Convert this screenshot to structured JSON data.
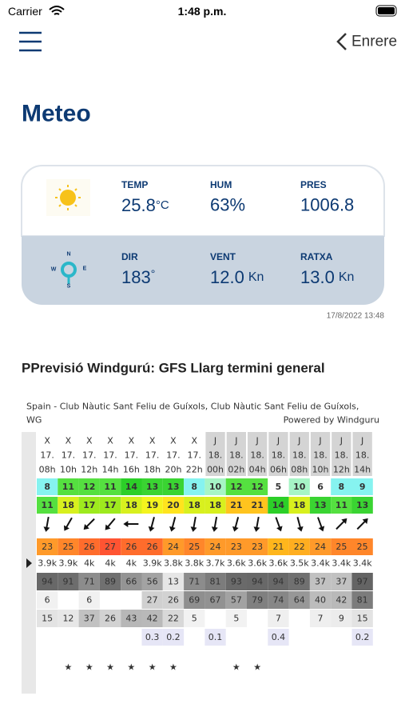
{
  "status_bar": {
    "carrier": "Carrier",
    "time": "1:48 p.m."
  },
  "nav": {
    "back": "Enrere"
  },
  "title": "Meteo",
  "current": {
    "temp": {
      "label": "TEMP",
      "value": "25.8",
      "unit": "°C"
    },
    "hum": {
      "label": "HUM",
      "value": "63%"
    },
    "pres": {
      "label": "PRES",
      "value": "1006.8"
    },
    "dir": {
      "label": "DIR",
      "value": "183",
      "unit": "°"
    },
    "vent": {
      "label": "VENT",
      "value": "12.0",
      "unit": "Kn"
    },
    "ratxa": {
      "label": "RATXA",
      "value": "13.0",
      "unit": "Kn"
    },
    "compass": {
      "n": "N",
      "w": "W",
      "e": "E",
      "s": "S"
    },
    "timestamp": "17/8/2022 13:48"
  },
  "forecast": {
    "heading": "PPrevisió Windgurú: GFS Llarg termini general",
    "location_line1": "Spain - Club Nàutic Sant Feliu de Guíxols, Club Nàutic Sant Feliu de Guíxols,",
    "location_line2": "WG",
    "powered": "Powered by Windguru",
    "days": [
      "X",
      "X",
      "X",
      "X",
      "X",
      "X",
      "X",
      "X",
      "J",
      "J",
      "J",
      "J",
      "J",
      "J",
      "J",
      "J"
    ],
    "dates": [
      "17.",
      "17.",
      "17.",
      "17.",
      "17.",
      "17.",
      "17.",
      "17.",
      "18.",
      "18.",
      "18.",
      "18.",
      "18.",
      "18.",
      "18.",
      "18."
    ],
    "hours": [
      "08h",
      "10h",
      "12h",
      "14h",
      "16h",
      "18h",
      "20h",
      "22h",
      "00h",
      "02h",
      "04h",
      "06h",
      "08h",
      "10h",
      "12h",
      "14h"
    ],
    "wind_speed": [
      8,
      11,
      12,
      11,
      14,
      13,
      13,
      8,
      10,
      12,
      12,
      5,
      10,
      6,
      8,
      9
    ],
    "wind_gust": [
      11,
      18,
      17,
      17,
      18,
      19,
      20,
      18,
      18,
      21,
      21,
      14,
      18,
      13,
      11,
      13
    ],
    "wind_direction": [
      10,
      30,
      45,
      40,
      90,
      15,
      15,
      10,
      10,
      15,
      10,
      340,
      345,
      340,
      225,
      225
    ],
    "temperature": [
      23,
      25,
      26,
      27,
      26,
      26,
      24,
      25,
      24,
      23,
      23,
      21,
      22,
      24,
      25,
      25
    ],
    "cloud_base": [
      "3.9k",
      "3.9k",
      "4k",
      "4k",
      "4k",
      "3.9k",
      "3.8k",
      "3.8k",
      "3.7k",
      "3.6k",
      "3.6k",
      "3.6k",
      "3.5k",
      "3.4k",
      "3.4k",
      "3.4k"
    ],
    "cloud_high": [
      94,
      91,
      71,
      89,
      66,
      56,
      13,
      71,
      81,
      93,
      94,
      94,
      89,
      37,
      37,
      97
    ],
    "cloud_mid": [
      6,
      null,
      6,
      null,
      null,
      27,
      26,
      69,
      67,
      57,
      79,
      74,
      64,
      40,
      42,
      81
    ],
    "cloud_low": [
      15,
      12,
      37,
      26,
      43,
      42,
      22,
      5,
      null,
      5,
      null,
      7,
      null,
      7,
      9,
      15
    ],
    "precipitation": [
      null,
      null,
      null,
      null,
      null,
      0.3,
      0.2,
      null,
      0.1,
      null,
      null,
      0.4,
      null,
      null,
      null,
      0.2
    ],
    "stars": [
      0,
      1,
      1,
      1,
      1,
      1,
      1,
      0,
      0,
      1,
      1,
      0,
      0,
      0,
      0,
      0
    ]
  }
}
